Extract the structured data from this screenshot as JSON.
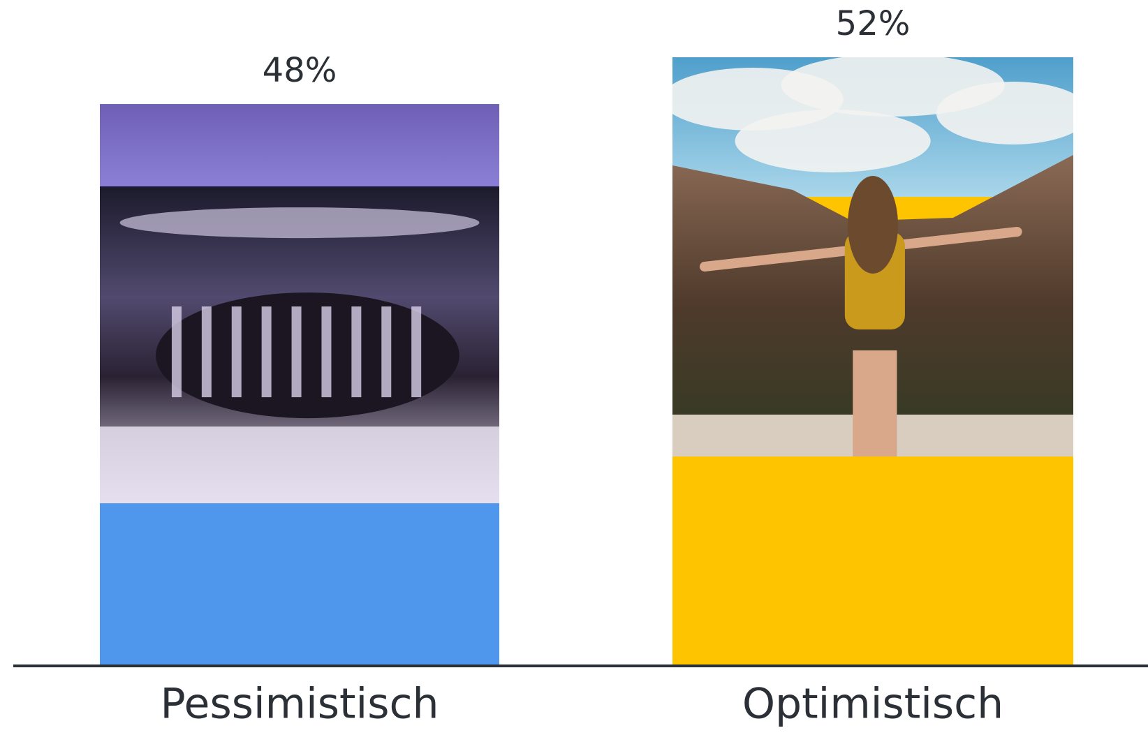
{
  "chart_data": {
    "type": "bar",
    "categories": [
      "Pessimistisch",
      "Optimistisch"
    ],
    "values": [
      48,
      52
    ],
    "value_labels": [
      "48%",
      "52%"
    ],
    "colors": [
      "#4f97ec",
      "#fec400"
    ],
    "ylim": [
      0,
      52
    ]
  }
}
